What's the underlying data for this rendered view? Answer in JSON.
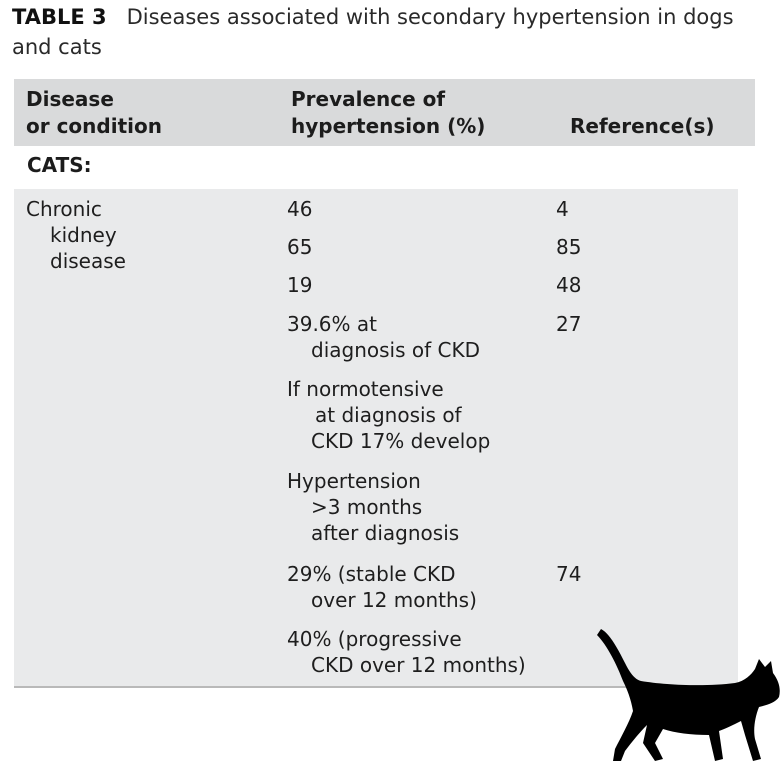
{
  "caption": {
    "label": "TABLE 3",
    "text": "Diseases associated with secondary hypertension in dogs and cats"
  },
  "header": {
    "col1": "Disease\nor condition",
    "col2": "Prevalence of\nhypertension (%)",
    "col3": "Reference(s)"
  },
  "group": "CATS:",
  "disease": {
    "line1": "Chronic",
    "line2": "kidney",
    "line3": "disease"
  },
  "rows": [
    {
      "prevalence": [
        "46"
      ],
      "reference": "4"
    },
    {
      "prevalence": [
        "65"
      ],
      "reference": "85"
    },
    {
      "prevalence": [
        "19"
      ],
      "reference": "48"
    },
    {
      "prevalence": [
        "39.6% at",
        "diagnosis of CKD"
      ],
      "reference": "27"
    },
    {
      "prevalence": [
        "If normotensive",
        "at diagnosis of",
        "CKD 17% develop"
      ],
      "reference": ""
    },
    {
      "prevalence": [
        "Hypertension",
        ">3 months",
        "after diagnosis"
      ],
      "reference": ""
    },
    {
      "prevalence": [
        "29% (stable CKD",
        "over 12 months)"
      ],
      "reference": "74"
    },
    {
      "prevalence": [
        "40% (progressive",
        "CKD over 12 months)"
      ],
      "reference": ""
    }
  ],
  "image": {
    "icon": "cat-silhouette",
    "color": "#000000"
  }
}
